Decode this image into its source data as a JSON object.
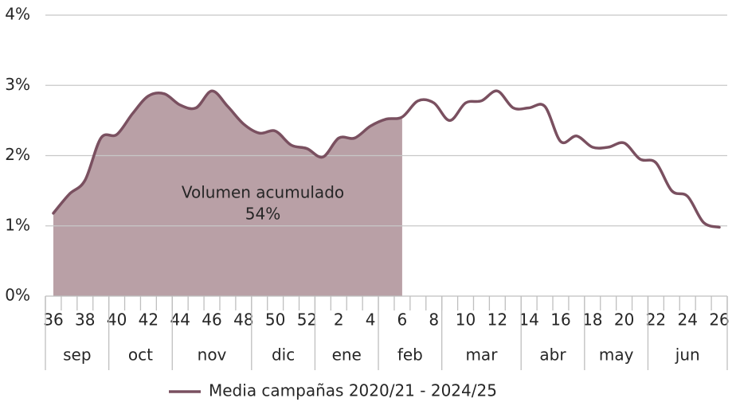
{
  "chart_data": {
    "type": "line",
    "categories": [
      "36",
      null,
      "38",
      null,
      "40",
      null,
      "42",
      null,
      "44",
      null,
      "46",
      null,
      "48",
      null,
      "50",
      null,
      "52",
      null,
      "2",
      null,
      "4",
      null,
      "6",
      null,
      "8",
      null,
      "10",
      null,
      "12",
      null,
      "14",
      null,
      "16",
      null,
      "18",
      null,
      "20",
      null,
      "22",
      null,
      "24",
      null,
      "26"
    ],
    "month_groups": [
      {
        "label": "sep",
        "span": 4
      },
      {
        "label": "oct",
        "span": 4
      },
      {
        "label": "nov",
        "span": 5
      },
      {
        "label": "dic",
        "span": 4
      },
      {
        "label": "ene",
        "span": 4
      },
      {
        "label": "feb",
        "span": 4
      },
      {
        "label": "mar",
        "span": 5
      },
      {
        "label": "abr",
        "span": 4
      },
      {
        "label": "may",
        "span": 4
      },
      {
        "label": "jun",
        "span": 5
      }
    ],
    "series": [
      {
        "name": "Media campañas 2020/21 - 2024/25",
        "color": "#7a5060",
        "values": [
          1.18,
          1.45,
          1.65,
          2.25,
          2.3,
          2.6,
          2.85,
          2.88,
          2.72,
          2.68,
          2.92,
          2.7,
          2.45,
          2.32,
          2.35,
          2.15,
          2.1,
          1.98,
          2.25,
          2.25,
          2.42,
          2.52,
          2.55,
          2.78,
          2.75,
          2.5,
          2.75,
          2.78,
          2.92,
          2.68,
          2.68,
          2.7,
          2.2,
          2.28,
          2.12,
          2.12,
          2.18,
          1.95,
          1.9,
          1.5,
          1.42,
          1.05,
          0.98
        ]
      }
    ],
    "shade_until_category": "6",
    "shade_color": "#b9a0a6",
    "annotations": [
      "Volumen acumulado",
      "54%"
    ],
    "ylim": [
      0,
      4
    ],
    "yticks": [
      {
        "value": 0,
        "label": "0%"
      },
      {
        "value": 1,
        "label": "1%"
      },
      {
        "value": 2,
        "label": "2%"
      },
      {
        "value": 3,
        "label": "3%"
      },
      {
        "value": 4,
        "label": "4%"
      }
    ],
    "grid": true,
    "legend": "bottom"
  }
}
